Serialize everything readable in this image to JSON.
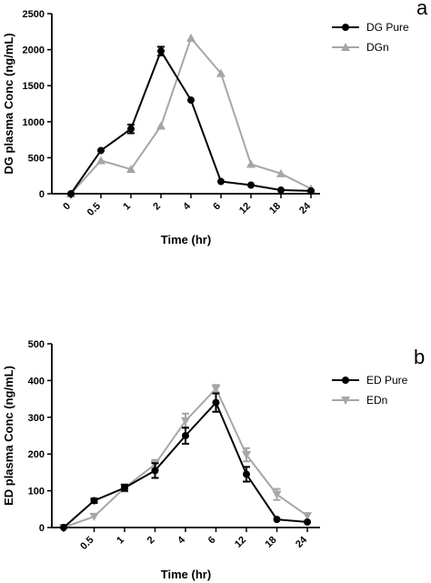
{
  "chart_data": [
    {
      "type": "line",
      "panel_label": "a",
      "ylabel": "DG plasma Conc (ng/mL)",
      "xlabel": "Time (hr)",
      "categories": [
        "0",
        "0.5",
        "1",
        "2",
        "4",
        "6",
        "12",
        "18",
        "24"
      ],
      "ylim": [
        0,
        2500
      ],
      "yticks": [
        0,
        500,
        1000,
        1500,
        2000,
        2500
      ],
      "legend_position": "top-right",
      "series": [
        {
          "name": "DG Pure",
          "color": "#000000",
          "marker": "circle",
          "values": [
            0,
            600,
            900,
            1980,
            1300,
            170,
            120,
            50,
            40
          ],
          "errors": [
            0,
            0,
            60,
            60,
            0,
            0,
            0,
            0,
            0
          ]
        },
        {
          "name": "DGn",
          "color": "#a6a6a6",
          "marker": "triangle-up",
          "values": [
            0,
            460,
            340,
            940,
            2160,
            1670,
            410,
            280,
            70
          ],
          "errors": [
            0,
            0,
            0,
            0,
            0,
            0,
            0,
            0,
            0
          ]
        }
      ]
    },
    {
      "type": "line",
      "panel_label": "b",
      "ylabel": "ED plasma Conc (ng/mL)",
      "xlabel": "Time (hr)",
      "categories": [
        "",
        "0.5",
        "1",
        "2",
        "4",
        "6",
        "12",
        "18",
        "24"
      ],
      "ylim": [
        0,
        500
      ],
      "yticks": [
        0,
        100,
        200,
        300,
        400,
        500
      ],
      "legend_position": "top-right",
      "series": [
        {
          "name": "ED Pure",
          "color": "#000000",
          "marker": "circle",
          "values": [
            0,
            73,
            108,
            155,
            250,
            340,
            145,
            22,
            15
          ],
          "errors": [
            0,
            6,
            8,
            20,
            22,
            25,
            20,
            0,
            0
          ]
        },
        {
          "name": "EDn",
          "color": "#a6a6a6",
          "marker": "triangle-down",
          "values": [
            0,
            30,
            108,
            172,
            290,
            378,
            198,
            90,
            32
          ],
          "errors": [
            0,
            0,
            10,
            12,
            20,
            10,
            18,
            15,
            0
          ]
        }
      ]
    }
  ]
}
